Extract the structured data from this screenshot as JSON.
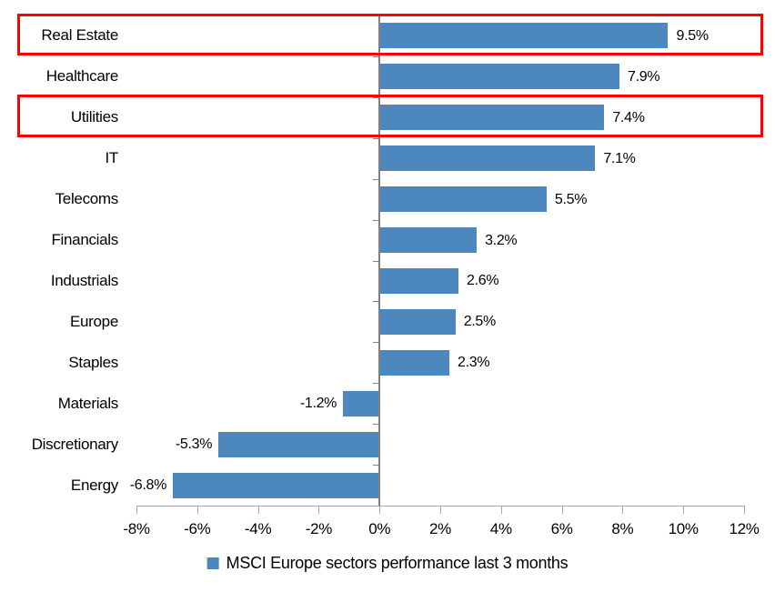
{
  "chart_data": {
    "type": "bar",
    "orientation": "horizontal",
    "title": "",
    "categories": [
      "Real Estate",
      "Healthcare",
      "Utilities",
      "IT",
      "Telecoms",
      "Financials",
      "Industrials",
      "Europe",
      "Staples",
      "Materials",
      "Discretionary",
      "Energy"
    ],
    "values": [
      9.5,
      7.9,
      7.4,
      7.1,
      5.5,
      3.2,
      2.6,
      2.5,
      2.3,
      -1.2,
      -5.3,
      -6.8
    ],
    "data_labels": [
      "9.5%",
      "7.9%",
      "7.4%",
      "7.1%",
      "5.5%",
      "3.2%",
      "2.6%",
      "2.5%",
      "2.3%",
      "-1.2%",
      "-5.3%",
      "-6.8%"
    ],
    "x_tick_labels": [
      "-8%",
      "-6%",
      "-4%",
      "-2%",
      "0%",
      "2%",
      "4%",
      "6%",
      "8%",
      "10%",
      "12%"
    ],
    "x_tick_values": [
      -8,
      -6,
      -4,
      -2,
      0,
      2,
      4,
      6,
      8,
      10,
      12
    ],
    "xlim": [
      -8,
      12
    ],
    "grid": "off",
    "legend": "MSCI Europe sectors performance last 3 months",
    "legend_position": "bottom-center",
    "highlighted_categories": [
      "Real Estate",
      "Utilities"
    ],
    "colors": {
      "bar": "#4C87BE",
      "highlight_box": "#FF0000",
      "axis_line": "#A6A6A6",
      "zero_line": "#808080",
      "text": "#000000",
      "background": "#FFFFFF"
    }
  }
}
